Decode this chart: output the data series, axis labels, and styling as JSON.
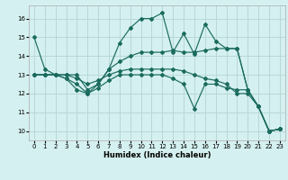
{
  "xlabel": "Humidex (Indice chaleur)",
  "ylabel": "",
  "bg_color": "#d5f0f0",
  "line_color": "#1a6b5e",
  "grid_color": "#b8d8d8",
  "xlim": [
    -0.5,
    23.5
  ],
  "ylim": [
    9.5,
    16.7
  ],
  "xticks": [
    0,
    1,
    2,
    3,
    4,
    5,
    6,
    7,
    8,
    9,
    10,
    11,
    12,
    13,
    14,
    15,
    16,
    17,
    18,
    19,
    20,
    21,
    22,
    23
  ],
  "yticks": [
    10,
    11,
    12,
    13,
    14,
    15,
    16
  ],
  "series": [
    [
      15.0,
      13.3,
      13.0,
      12.8,
      12.2,
      12.0,
      12.5,
      13.3,
      14.7,
      15.5,
      16.0,
      16.0,
      16.3,
      14.2,
      15.2,
      14.1,
      15.7,
      14.8,
      14.4,
      14.4,
      12.2,
      11.3,
      10.0,
      10.1
    ],
    [
      13.0,
      13.0,
      13.0,
      13.0,
      13.0,
      12.2,
      12.5,
      13.3,
      13.7,
      14.0,
      14.2,
      14.2,
      14.2,
      14.3,
      14.2,
      14.2,
      14.3,
      14.4,
      14.4,
      14.4,
      12.2,
      11.3,
      10.0,
      10.1
    ],
    [
      13.0,
      13.0,
      13.0,
      12.8,
      12.5,
      12.0,
      12.3,
      12.7,
      13.0,
      13.0,
      13.0,
      13.0,
      13.0,
      12.8,
      12.5,
      11.2,
      12.5,
      12.5,
      12.3,
      12.2,
      12.2,
      11.3,
      10.0,
      10.1
    ],
    [
      13.0,
      13.0,
      13.0,
      13.0,
      12.8,
      12.5,
      12.7,
      13.0,
      13.2,
      13.3,
      13.3,
      13.3,
      13.3,
      13.3,
      13.2,
      13.0,
      12.8,
      12.7,
      12.5,
      12.0,
      12.0,
      11.3,
      10.0,
      10.1
    ]
  ]
}
